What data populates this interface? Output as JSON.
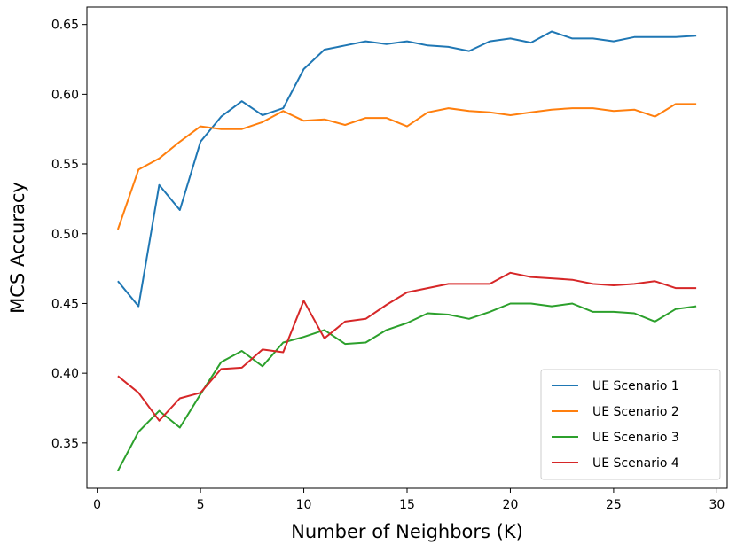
{
  "chart_data": {
    "type": "line",
    "title": "",
    "xlabel": "Number of Neighbors (K)",
    "ylabel": "MCS Accuracy",
    "xlim": [
      -0.5,
      30.5
    ],
    "ylim": [
      0.3175,
      0.6625
    ],
    "xticks": [
      0,
      5,
      10,
      15,
      20,
      25,
      30
    ],
    "yticks": [
      0.35,
      0.4,
      0.45,
      0.5,
      0.55,
      0.6,
      0.65
    ],
    "xtick_labels": [
      "0",
      "5",
      "10",
      "15",
      "20",
      "25",
      "30"
    ],
    "ytick_labels": [
      "0.35",
      "0.40",
      "0.45",
      "0.50",
      "0.55",
      "0.60",
      "0.65"
    ],
    "grid": false,
    "legend_position": "lower-right",
    "x": [
      1,
      2,
      3,
      4,
      5,
      6,
      7,
      8,
      9,
      10,
      11,
      12,
      13,
      14,
      15,
      16,
      17,
      18,
      19,
      20,
      21,
      22,
      23,
      24,
      25,
      26,
      27,
      28,
      29
    ],
    "series": [
      {
        "name": "UE Scenario 1",
        "color": "#1f77b4",
        "values": [
          0.466,
          0.448,
          0.535,
          0.517,
          0.566,
          0.584,
          0.595,
          0.585,
          0.59,
          0.618,
          0.632,
          0.635,
          0.638,
          0.636,
          0.638,
          0.635,
          0.634,
          0.631,
          0.638,
          0.64,
          0.637,
          0.645,
          0.64,
          0.64,
          0.638,
          0.641,
          0.641,
          0.641,
          0.642
        ]
      },
      {
        "name": "UE Scenario 2",
        "color": "#ff7f0e",
        "values": [
          0.503,
          0.546,
          0.554,
          0.566,
          0.577,
          0.575,
          0.575,
          0.58,
          0.588,
          0.581,
          0.582,
          0.578,
          0.583,
          0.583,
          0.577,
          0.587,
          0.59,
          0.588,
          0.587,
          0.585,
          0.587,
          0.589,
          0.59,
          0.59,
          0.588,
          0.589,
          0.584,
          0.593,
          0.593
        ]
      },
      {
        "name": "UE Scenario 3",
        "color": "#2ca02c",
        "values": [
          0.33,
          0.358,
          0.373,
          0.361,
          0.385,
          0.408,
          0.416,
          0.405,
          0.422,
          0.426,
          0.431,
          0.421,
          0.422,
          0.431,
          0.436,
          0.443,
          0.442,
          0.439,
          0.444,
          0.45,
          0.45,
          0.448,
          0.45,
          0.444,
          0.444,
          0.443,
          0.437,
          0.446,
          0.448
        ]
      },
      {
        "name": "UE Scenario 4",
        "color": "#d62728",
        "values": [
          0.398,
          0.386,
          0.366,
          0.382,
          0.386,
          0.403,
          0.404,
          0.417,
          0.415,
          0.452,
          0.425,
          0.437,
          0.439,
          0.449,
          0.458,
          0.461,
          0.464,
          0.464,
          0.464,
          0.472,
          0.469,
          0.468,
          0.467,
          0.464,
          0.463,
          0.464,
          0.466,
          0.461,
          0.461
        ]
      }
    ]
  }
}
